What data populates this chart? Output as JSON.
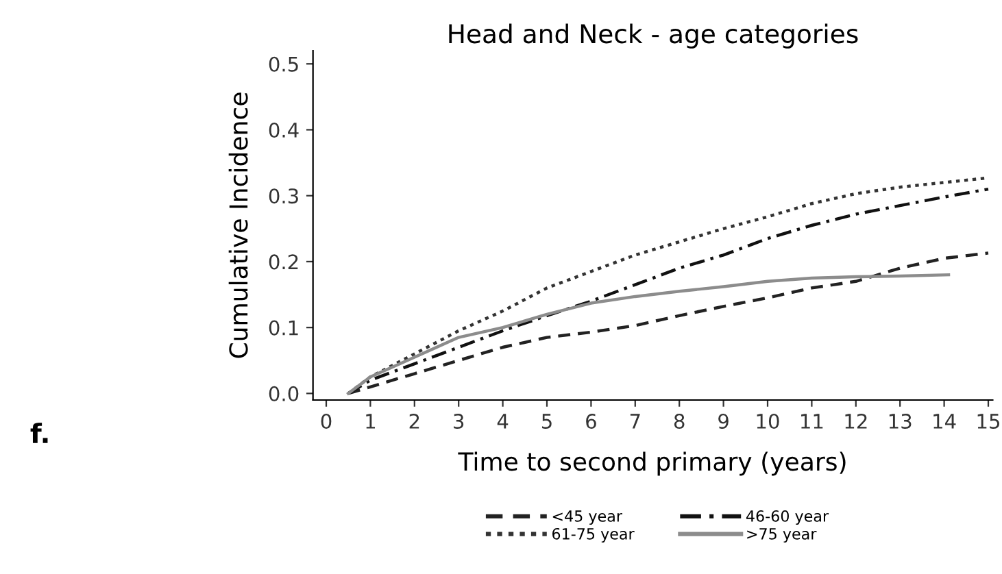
{
  "chart_data": {
    "type": "line",
    "title": "Head and Neck - age categories",
    "xlabel": "Time to second primary (years)",
    "ylabel": "Cumulative Incidence",
    "annotations": [
      "f."
    ],
    "x": [
      0.5,
      1,
      2,
      3,
      4,
      5,
      6,
      7,
      8,
      9,
      10,
      11,
      12,
      13,
      14,
      15
    ],
    "series": [
      {
        "name": "<45 year",
        "color": "#222222",
        "line_style": "dashed",
        "values": [
          0,
          0.01,
          0.03,
          0.05,
          0.07,
          0.085,
          0.093,
          0.103,
          0.118,
          0.132,
          0.145,
          0.16,
          0.17,
          0.19,
          0.205,
          0.213
        ]
      },
      {
        "name": "46-60 year",
        "color": "#111111",
        "line_style": "dashdot",
        "values": [
          0,
          0.02,
          0.045,
          0.07,
          0.095,
          0.118,
          0.14,
          0.165,
          0.19,
          0.21,
          0.235,
          0.255,
          0.272,
          0.285,
          0.298,
          0.31
        ]
      },
      {
        "name": "61-75 year",
        "color": "#333333",
        "line_style": "dotted",
        "values": [
          0,
          0.025,
          0.06,
          0.095,
          0.125,
          0.16,
          0.185,
          0.21,
          0.23,
          0.25,
          0.268,
          0.288,
          0.303,
          0.313,
          0.32,
          0.327
        ]
      },
      {
        "name": ">75 year",
        "color": "#8c8c8c",
        "line_style": "solid",
        "x": [
          0.5,
          1,
          2,
          3,
          4,
          5,
          6,
          7,
          8,
          9,
          10,
          11,
          12,
          13,
          14.1
        ],
        "values": [
          0,
          0.025,
          0.055,
          0.085,
          0.1,
          0.12,
          0.137,
          0.147,
          0.155,
          0.162,
          0.17,
          0.175,
          0.177,
          0.178,
          0.18
        ]
      }
    ],
    "xlim": [
      -0.3,
      15.1
    ],
    "xticks": [
      0,
      1,
      2,
      3,
      4,
      5,
      6,
      7,
      8,
      9,
      10,
      11,
      12,
      13,
      14,
      15
    ],
    "ylim": [
      -0.01,
      0.52
    ],
    "yticks": [
      {
        "value": 0,
        "label": "0.0"
      },
      {
        "value": 0.1,
        "label": "0.1"
      },
      {
        "value": 0.2,
        "label": "0.2"
      },
      {
        "value": 0.3,
        "label": "0.3"
      },
      {
        "value": 0.4,
        "label": "0.4"
      },
      {
        "value": 0.5,
        "label": "0.5"
      }
    ],
    "grid": false,
    "legend": "bottom"
  }
}
